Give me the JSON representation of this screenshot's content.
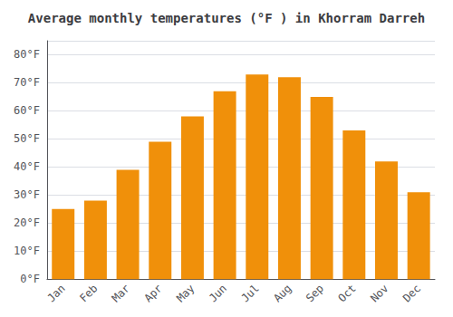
{
  "chart_data": {
    "type": "bar",
    "title": "Average monthly temperatures (°F ) in Khorram Darreh",
    "categories": [
      "Jan",
      "Feb",
      "Mar",
      "Apr",
      "May",
      "Jun",
      "Jul",
      "Aug",
      "Sep",
      "Oct",
      "Nov",
      "Dec"
    ],
    "values": [
      25,
      28,
      39,
      49,
      58,
      67,
      73,
      72,
      65,
      53,
      42,
      31
    ],
    "color": "#F0900A",
    "ylim": [
      0,
      85
    ],
    "yticks": [
      {
        "value": 0,
        "label": "0°F"
      },
      {
        "value": 10,
        "label": "10°F"
      },
      {
        "value": 20,
        "label": "20°F"
      },
      {
        "value": 30,
        "label": "30°F"
      },
      {
        "value": 40,
        "label": "40°F"
      },
      {
        "value": 50,
        "label": "50°F"
      },
      {
        "value": 60,
        "label": "60°F"
      },
      {
        "value": 70,
        "label": "70°F"
      },
      {
        "value": 80,
        "label": "80°F"
      }
    ],
    "grid": true
  }
}
